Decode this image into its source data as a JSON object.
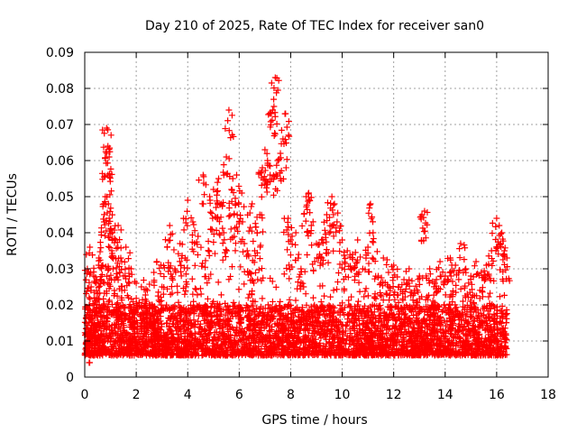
{
  "chart_data": {
    "type": "scatter",
    "title": "Day 210 of 2025, Rate Of TEC Index for receiver san0",
    "xlabel": "GPS time / hours",
    "ylabel": "ROTI / TECUs",
    "xlim": [
      0,
      18
    ],
    "ylim": [
      0,
      0.09
    ],
    "x_ticks": [
      "0",
      "2",
      "4",
      "6",
      "8",
      "10",
      "12",
      "14",
      "16",
      "18"
    ],
    "y_ticks": [
      "0",
      "0.01",
      "0.02",
      "0.03",
      "0.04",
      "0.05",
      "0.06",
      "0.07",
      "0.08",
      "0.09"
    ],
    "grid": true,
    "marker": "+",
    "color": "#ff0000",
    "series": [
      {
        "x": [
          0.05,
          0.1,
          0.2,
          0.25,
          0.3,
          0.35,
          0.45,
          0.5,
          0.55,
          0.6,
          0.7,
          0.75,
          0.8,
          0.85,
          0.85,
          0.9,
          0.9,
          0.92,
          0.95,
          1.0,
          1.05,
          1.1,
          1.15,
          1.2,
          1.3,
          1.4,
          1.5,
          1.6,
          1.7,
          1.8,
          1.9,
          2.0,
          2.2,
          2.4,
          2.6,
          2.8,
          3.0,
          3.2,
          3.3,
          3.5,
          3.7,
          3.9,
          4.0,
          4.2,
          4.4,
          4.6,
          4.8,
          4.9,
          5.0,
          5.1,
          5.2,
          5.3,
          5.4,
          5.5,
          5.6,
          5.7,
          5.8,
          5.9,
          6.0,
          6.1,
          6.2,
          6.4,
          6.5,
          6.6,
          6.7,
          6.8,
          6.9,
          7.0,
          7.1,
          7.2,
          7.3,
          7.35,
          7.4,
          7.5,
          7.6,
          7.7,
          7.8,
          7.9,
          8.0,
          8.2,
          8.4,
          8.6,
          8.7,
          8.8,
          9.0,
          9.2,
          9.4,
          9.5,
          9.6,
          9.7,
          9.8,
          10.0,
          10.2,
          10.4,
          10.6,
          10.8,
          11.0,
          11.1,
          11.2,
          11.4,
          11.6,
          11.8,
          12.0,
          12.2,
          12.4,
          12.6,
          12.8,
          13.0,
          13.1,
          13.2,
          13.4,
          13.6,
          13.8,
          14.0,
          14.2,
          14.4,
          14.6,
          14.8,
          15.0,
          15.2,
          15.4,
          15.6,
          15.8,
          16.0,
          16.1,
          16.2,
          16.3,
          16.4
        ],
        "y": [
          0.012,
          0.03,
          0.036,
          0.025,
          0.018,
          0.028,
          0.022,
          0.015,
          0.033,
          0.027,
          0.031,
          0.043,
          0.05,
          0.062,
          0.069,
          0.064,
          0.056,
          0.048,
          0.044,
          0.041,
          0.035,
          0.03,
          0.024,
          0.038,
          0.042,
          0.033,
          0.028,
          0.036,
          0.022,
          0.03,
          0.018,
          0.026,
          0.025,
          0.021,
          0.02,
          0.032,
          0.025,
          0.036,
          0.042,
          0.03,
          0.037,
          0.033,
          0.049,
          0.043,
          0.039,
          0.056,
          0.035,
          0.041,
          0.052,
          0.047,
          0.055,
          0.048,
          0.04,
          0.061,
          0.074,
          0.052,
          0.045,
          0.056,
          0.043,
          0.051,
          0.037,
          0.029,
          0.048,
          0.035,
          0.04,
          0.045,
          0.058,
          0.063,
          0.06,
          0.056,
          0.074,
          0.075,
          0.083,
          0.06,
          0.062,
          0.066,
          0.073,
          0.044,
          0.038,
          0.04,
          0.03,
          0.05,
          0.051,
          0.042,
          0.037,
          0.038,
          0.045,
          0.04,
          0.05,
          0.048,
          0.043,
          0.038,
          0.035,
          0.034,
          0.038,
          0.03,
          0.036,
          0.048,
          0.04,
          0.028,
          0.033,
          0.029,
          0.031,
          0.025,
          0.027,
          0.03,
          0.024,
          0.028,
          0.045,
          0.046,
          0.03,
          0.026,
          0.032,
          0.028,
          0.033,
          0.031,
          0.037,
          0.03,
          0.028,
          0.032,
          0.029,
          0.031,
          0.035,
          0.044,
          0.042,
          0.04,
          0.035,
          0.033
        ],
        "band": {
          "x_range": [
            0,
            16.4
          ],
          "typical_min": 0.006,
          "typical_max": 0.02
        }
      }
    ]
  }
}
